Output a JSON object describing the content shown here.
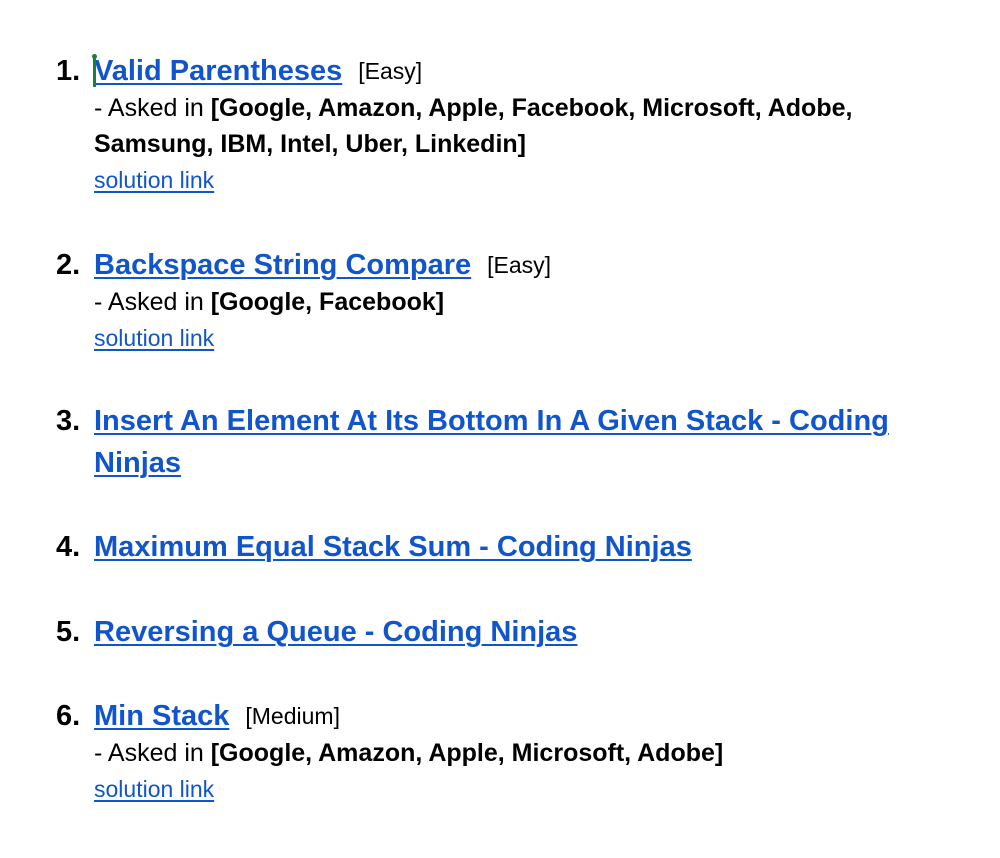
{
  "problems": [
    {
      "number": "1.",
      "title": "Valid Parentheses",
      "difficulty": "[Easy]",
      "asked_prefix": "- Asked in ",
      "companies": "[Google, Amazon, Apple, Facebook, Microsoft, Adobe, Samsung, IBM, Intel, Uber, Linkedin]",
      "solution_label": "solution link"
    },
    {
      "number": "2.",
      "title": "Backspace String Compare",
      "difficulty": "[Easy]",
      "asked_prefix": "- Asked in ",
      "companies": "[Google, Facebook]",
      "solution_label": "solution link"
    },
    {
      "number": "3.",
      "title": "Insert An Element At Its Bottom In A Given Stack - Coding Ninjas"
    },
    {
      "number": "4.",
      "title": "Maximum Equal Stack Sum - Coding Ninjas"
    },
    {
      "number": "5.",
      "title": "Reversing a Queue - Coding Ninjas"
    },
    {
      "number": "6.",
      "title": "Min Stack",
      "difficulty": "[Medium]",
      "asked_prefix": "- Asked in ",
      "companies": "[Google, Amazon, Apple, Microsoft, Adobe]",
      "solution_label": "solution link"
    }
  ]
}
